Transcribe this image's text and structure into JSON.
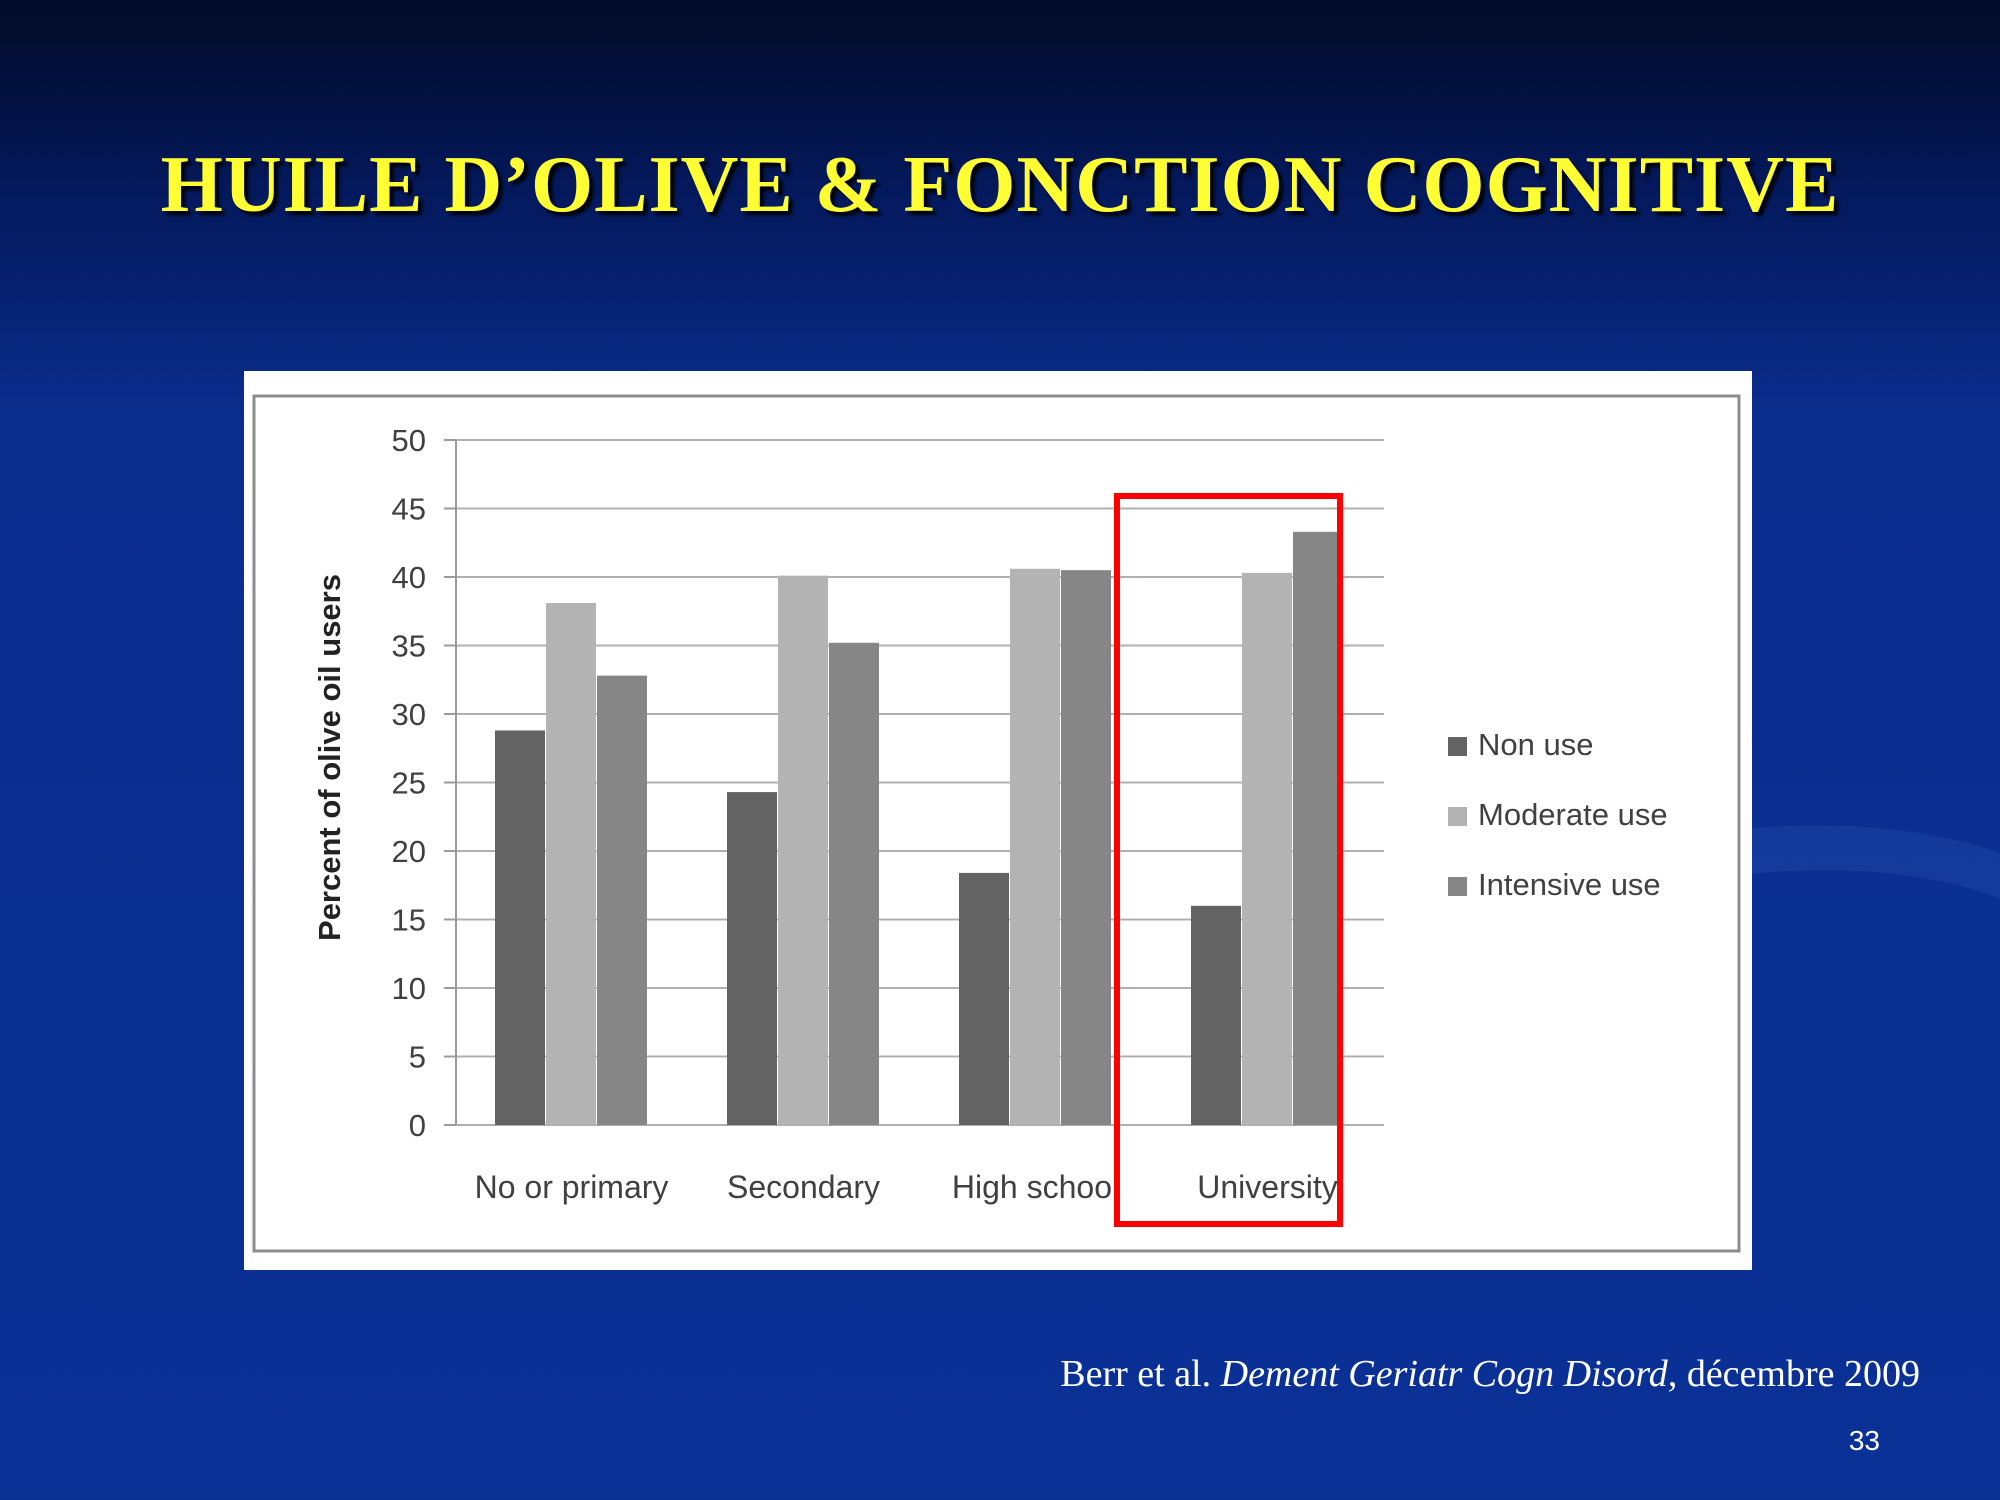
{
  "slide": {
    "title": "HUILE D’OLIVE & FONCTION COGNITIVE",
    "citation_authors": "Berr et al.",
    "citation_journal": "Dement Geriatr Cogn Disord",
    "citation_date": ", décembre 2009",
    "page_number": "33"
  },
  "colors": {
    "non_use": "#636363",
    "moderate_use": "#b3b3b3",
    "intensive_use": "#868686",
    "highlight": "#ff0000"
  },
  "chart_data": {
    "type": "bar",
    "title": "",
    "xlabel": "",
    "ylabel": "Percent of olive oil users",
    "ylim": [
      0,
      50
    ],
    "yticks": [
      0,
      5,
      10,
      15,
      20,
      25,
      30,
      35,
      40,
      45,
      50
    ],
    "grid": true,
    "legend_position": "right",
    "categories": [
      "No or primary",
      "Secondary",
      "High school",
      "University"
    ],
    "series": [
      {
        "name": "Non use",
        "color": "#636363",
        "values": [
          28.8,
          24.3,
          18.4,
          16.0
        ]
      },
      {
        "name": "Moderate use",
        "color": "#b3b3b3",
        "values": [
          38.1,
          40.1,
          40.6,
          40.3
        ]
      },
      {
        "name": "Intensive use",
        "color": "#868686",
        "values": [
          32.8,
          35.2,
          40.5,
          43.3
        ]
      }
    ],
    "highlighted_category": "University"
  }
}
